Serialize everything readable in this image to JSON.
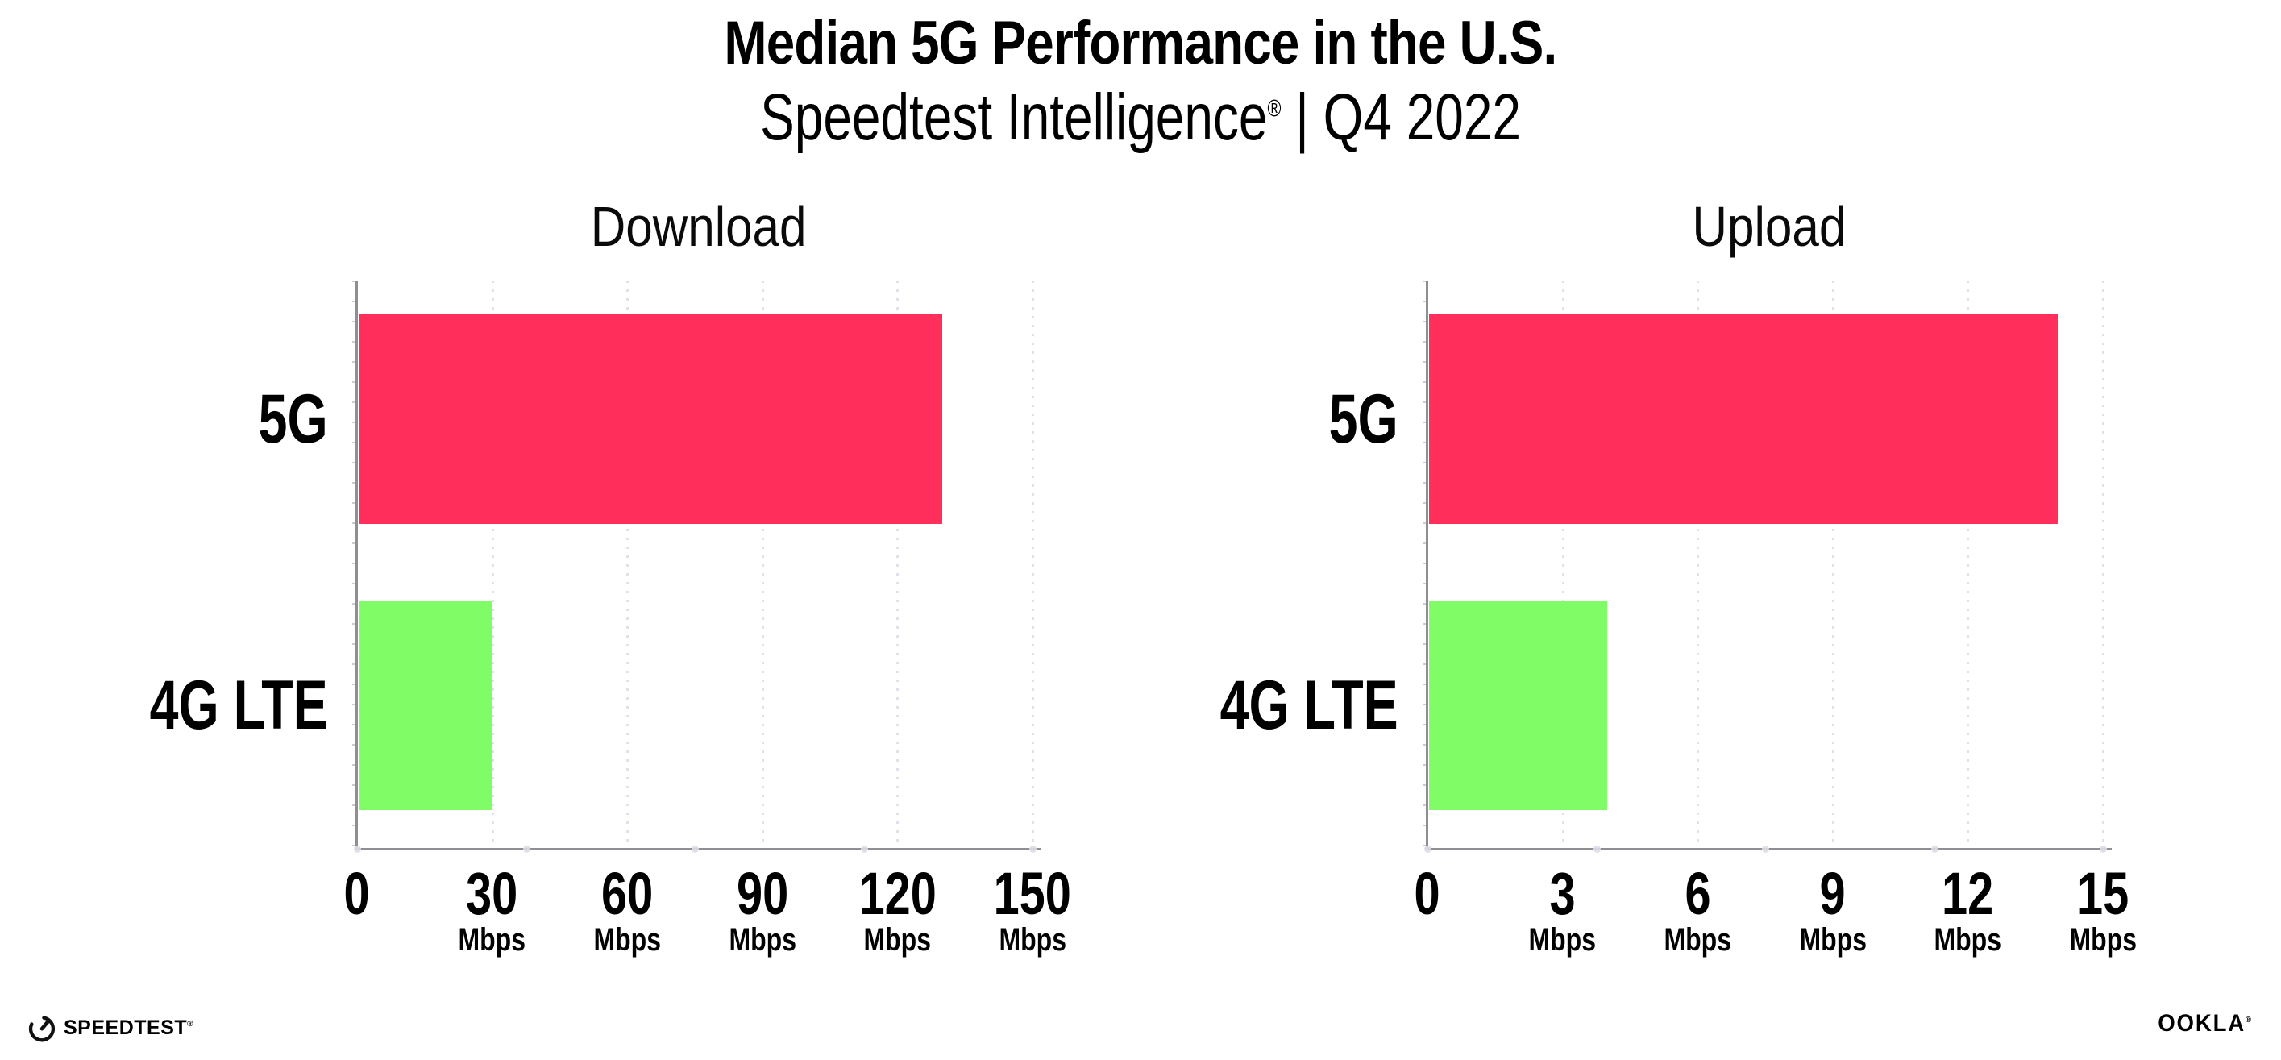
{
  "header": {
    "title": "Median 5G Performance in the U.S.",
    "subtitle_brand": "Speedtest Intelligence",
    "subtitle_reg": "®",
    "subtitle_rest": " | Q4 2022"
  },
  "chart_data": [
    {
      "type": "bar",
      "orientation": "horizontal",
      "title": "Download",
      "categories": [
        "5G",
        "4G LTE"
      ],
      "values": [
        130,
        30
      ],
      "unit": "Mbps",
      "xlim": [
        0,
        150
      ],
      "ticks": [
        0,
        30,
        60,
        90,
        120,
        150
      ],
      "grid": "dotted-vertical",
      "legend": "none",
      "bar_colors": [
        "#ff2e5b",
        "#80fc66"
      ]
    },
    {
      "type": "bar",
      "orientation": "horizontal",
      "title": "Upload",
      "categories": [
        "5G",
        "4G LTE"
      ],
      "values": [
        14,
        4
      ],
      "unit": "Mbps",
      "xlim": [
        0,
        15
      ],
      "ticks": [
        0,
        3,
        6,
        9,
        12,
        15
      ],
      "grid": "dotted-vertical",
      "legend": "none",
      "bar_colors": [
        "#ff2e5b",
        "#80fc66"
      ]
    }
  ],
  "colors": {
    "bar_5g": "#ff2e5b",
    "bar_4g_lte": "#80fc66",
    "axis": "#8e8e93",
    "gridline_dots": "#e0e1ea",
    "text": "#000000",
    "background": "#ffffff"
  },
  "footer": {
    "speedtest_label": "SPEEDTEST",
    "speedtest_reg": "®",
    "ookla_label": "OOKLA",
    "ookla_reg": "®"
  }
}
